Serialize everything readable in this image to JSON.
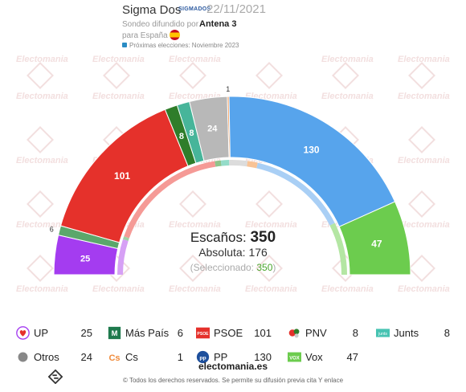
{
  "header": {
    "pollster": "Sigma Dos",
    "pollster_logo": "SIGMADOS",
    "date": "22/11/2021",
    "sponsor_prefix": "Sondeo difundido por",
    "sponsor": "Antena 3",
    "region": "para España",
    "next_elections": "Próximas elecciones: Noviembre 2023"
  },
  "watermark": "Electomania",
  "chart_data": {
    "type": "parliament",
    "total_seats": 350,
    "majority": 176,
    "selected": 350,
    "series": [
      {
        "name": "UP",
        "value": 25,
        "color": "#a43cf0"
      },
      {
        "name": "Más País",
        "value": 6,
        "color": "#5ba76b"
      },
      {
        "name": "PSOE",
        "value": 101,
        "color": "#e5312b"
      },
      {
        "name": "PNV",
        "value": 8,
        "color": "#2f7d2a"
      },
      {
        "name": "Junts",
        "value": 8,
        "color": "#47b59a"
      },
      {
        "name": "Otros",
        "value": 24,
        "color": "#b8b8b8"
      },
      {
        "name": "Cs",
        "value": 1,
        "color": "#f08b3c"
      },
      {
        "name": "PP",
        "value": 130,
        "color": "#57a4ec"
      },
      {
        "name": "Vox",
        "value": 47,
        "color": "#6ccc4e"
      }
    ],
    "inner_ring_previous": [
      {
        "value": 35,
        "color": "#d6a0f5"
      },
      {
        "value": 3,
        "color": "#9fd2a6"
      },
      {
        "value": 120,
        "color": "#f59a96"
      },
      {
        "value": 6,
        "color": "#8fc48b"
      },
      {
        "value": 8,
        "color": "#94dcc9"
      },
      {
        "value": 18,
        "color": "#dcdcdc"
      },
      {
        "value": 10,
        "color": "#f8c396"
      },
      {
        "value": 98,
        "color": "#a9cff5"
      },
      {
        "value": 52,
        "color": "#b4e6a3"
      }
    ]
  },
  "center": {
    "seats_label": "Escaños:",
    "seats_value": "350",
    "majority_text": "Absoluta: 176",
    "selected_prefix": "(Seleccionado: ",
    "selected_value": "350",
    "selected_suffix": ")"
  },
  "legend": [
    {
      "name": "UP",
      "value": "25",
      "icon": "heart-icon",
      "color": "#a43cf0"
    },
    {
      "name": "Más País",
      "value": "6",
      "icon": "mas-pais-logo",
      "color": "#1f7a4d"
    },
    {
      "name": "PSOE",
      "value": "101",
      "icon": "psoe-logo",
      "color": "#e5312b"
    },
    {
      "name": "PNV",
      "value": "8",
      "icon": "pnv-logo",
      "color": "#2f7d2a"
    },
    {
      "name": "Junts",
      "value": "8",
      "icon": "junts-logo",
      "color": "#47c3b2"
    },
    {
      "name": "Otros",
      "value": "24",
      "icon": "circle-icon",
      "color": "#888888"
    },
    {
      "name": "Cs",
      "value": "1",
      "icon": "cs-logo",
      "color": "#f08b3c"
    },
    {
      "name": "PP",
      "value": "130",
      "icon": "pp-logo",
      "color": "#1d4f9c"
    },
    {
      "name": "Vox",
      "value": "47",
      "icon": "vox-logo",
      "color": "#6ccc4e"
    }
  ],
  "footer": {
    "brand": "electomania.es",
    "copyright": "© Todos los derechos reservados. Se permite su difusión previa cita Y enlace"
  }
}
